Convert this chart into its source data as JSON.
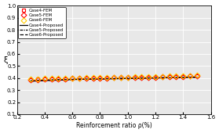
{
  "title": "",
  "xlabel": "Reinforcement ratio ρ(%)",
  "ylabel": "ξ",
  "xlim": [
    0.2,
    1.6
  ],
  "ylim": [
    0.1,
    1.0
  ],
  "yticks": [
    0.1,
    0.2,
    0.3,
    0.4,
    0.5,
    0.6,
    0.7,
    0.8,
    0.9,
    1.0
  ],
  "xticks": [
    0.2,
    0.4,
    0.6,
    0.8,
    1.0,
    1.2,
    1.4,
    1.6
  ],
  "rho": [
    0.3,
    0.35,
    0.4,
    0.45,
    0.5,
    0.55,
    0.6,
    0.65,
    0.7,
    0.75,
    0.8,
    0.85,
    0.9,
    0.95,
    1.0,
    1.05,
    1.1,
    1.15,
    1.2,
    1.25,
    1.3,
    1.35,
    1.4,
    1.45,
    1.5
  ],
  "case4_fem": [
    0.388,
    0.39,
    0.392,
    0.393,
    0.394,
    0.395,
    0.396,
    0.397,
    0.398,
    0.399,
    0.4,
    0.401,
    0.402,
    0.403,
    0.404,
    0.405,
    0.406,
    0.407,
    0.408,
    0.41,
    0.411,
    0.412,
    0.413,
    0.415,
    0.416
  ],
  "case5_fem": [
    0.385,
    0.388,
    0.39,
    0.392,
    0.393,
    0.395,
    0.396,
    0.397,
    0.398,
    0.399,
    0.4,
    0.401,
    0.402,
    0.403,
    0.404,
    0.405,
    0.406,
    0.407,
    0.408,
    0.41,
    0.411,
    0.412,
    0.413,
    0.415,
    0.416
  ],
  "case6_fem": [
    0.392,
    0.394,
    0.396,
    0.397,
    0.398,
    0.399,
    0.4,
    0.401,
    0.402,
    0.403,
    0.404,
    0.405,
    0.406,
    0.407,
    0.408,
    0.409,
    0.41,
    0.411,
    0.412,
    0.413,
    0.415,
    0.416,
    0.418,
    0.42,
    0.422
  ],
  "case4_prop": [
    0.375,
    0.377,
    0.38,
    0.382,
    0.384,
    0.386,
    0.388,
    0.39,
    0.391,
    0.392,
    0.393,
    0.394,
    0.395,
    0.396,
    0.397,
    0.398,
    0.399,
    0.4,
    0.401,
    0.402,
    0.403,
    0.404,
    0.405,
    0.406,
    0.407
  ],
  "case5_prop": [
    0.373,
    0.376,
    0.379,
    0.381,
    0.383,
    0.385,
    0.387,
    0.389,
    0.39,
    0.391,
    0.392,
    0.393,
    0.394,
    0.395,
    0.396,
    0.397,
    0.398,
    0.399,
    0.4,
    0.401,
    0.402,
    0.403,
    0.404,
    0.405,
    0.406
  ],
  "case6_prop": [
    0.378,
    0.381,
    0.383,
    0.385,
    0.387,
    0.389,
    0.39,
    0.391,
    0.392,
    0.393,
    0.394,
    0.395,
    0.396,
    0.397,
    0.398,
    0.399,
    0.4,
    0.401,
    0.402,
    0.403,
    0.404,
    0.405,
    0.406,
    0.407,
    0.408
  ],
  "color_case4": "#ff0000",
  "color_case5": "#ff0000",
  "color_case6": "#ffcc00",
  "marker_case4": "s",
  "marker_case5": "D",
  "marker_case6": "D",
  "marker_size": 3.5,
  "bg_color": "#e8e8e8",
  "grid_color": "#ffffff"
}
